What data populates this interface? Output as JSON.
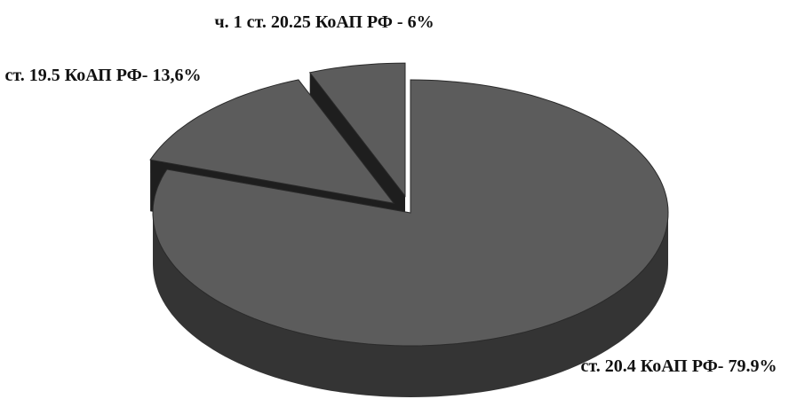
{
  "chart_data": {
    "type": "pie",
    "categories": [
      "ст. 20.4 КоАП РФ-",
      "ст. 19.5 КоАП РФ-",
      "ч. 1 ст. 20.25 КоАП РФ -"
    ],
    "values": [
      79.9,
      13.6,
      6
    ],
    "value_labels": [
      "79.9%",
      "13,6%",
      "6%"
    ],
    "color": "#5c5c5c"
  }
}
